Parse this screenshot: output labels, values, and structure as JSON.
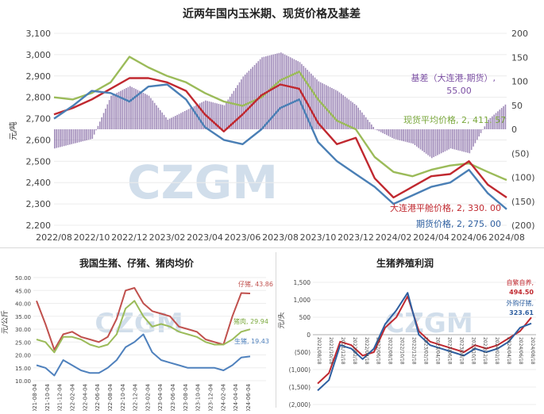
{
  "chart_data": [
    {
      "type": "line",
      "title": "近两年国内玉米期、现货价格及基差",
      "ylabel": "元/吨",
      "watermark": "CZGM",
      "x_ticks": [
        "2022/08",
        "2022/10",
        "2022/12",
        "2023/02",
        "2023/04",
        "2023/06",
        "2023/08",
        "2023/10",
        "2023/12",
        "2024/02",
        "2024/04",
        "2024/06",
        "2024/08"
      ],
      "left_ticks": [
        "3,100",
        "3,000",
        "2,900",
        "2,800",
        "2,700",
        "2,600",
        "2,500",
        "2,400",
        "2,300",
        "2,200"
      ],
      "right_ticks": [
        "200",
        "150",
        "100",
        "50",
        "0",
        "(50)",
        "(100)",
        "(150)",
        "(200)"
      ],
      "ylim": [
        2200,
        3100
      ],
      "ylim_right": [
        -200,
        200
      ],
      "x_domain": [
        "2022/08",
        "2024/08"
      ],
      "series": [
        {
          "name": "现货平均价格",
          "color": "#9bbb59",
          "x": [
            "2022/08",
            "2022/09",
            "2022/10",
            "2022/11",
            "2022/12",
            "2023/01",
            "2023/02",
            "2023/03",
            "2023/04",
            "2023/05",
            "2023/06",
            "2023/07",
            "2023/08",
            "2023/09",
            "2023/10",
            "2023/11",
            "2023/12",
            "2024/01",
            "2024/02",
            "2024/03",
            "2024/04",
            "2024/05",
            "2024/06",
            "2024/07",
            "2024/08"
          ],
          "y": [
            2800,
            2790,
            2820,
            2870,
            2990,
            2940,
            2900,
            2870,
            2820,
            2780,
            2760,
            2800,
            2880,
            2920,
            2790,
            2690,
            2650,
            2520,
            2450,
            2430,
            2460,
            2480,
            2490,
            2450,
            2412
          ]
        },
        {
          "name": "大连港平舱价格",
          "color": "#c0282f",
          "x": [
            "2022/08",
            "2022/09",
            "2022/10",
            "2022/11",
            "2022/12",
            "2023/01",
            "2023/02",
            "2023/03",
            "2023/04",
            "2023/05",
            "2023/06",
            "2023/07",
            "2023/08",
            "2023/09",
            "2023/10",
            "2023/11",
            "2023/12",
            "2024/01",
            "2024/02",
            "2024/03",
            "2024/04",
            "2024/05",
            "2024/06",
            "2024/07",
            "2024/08"
          ],
          "y": [
            2720,
            2750,
            2790,
            2840,
            2890,
            2890,
            2870,
            2830,
            2720,
            2640,
            2720,
            2810,
            2860,
            2840,
            2680,
            2580,
            2610,
            2420,
            2330,
            2380,
            2430,
            2440,
            2500,
            2390,
            2330
          ]
        },
        {
          "name": "期货价格",
          "color": "#4a7fb5",
          "x": [
            "2022/08",
            "2022/09",
            "2022/10",
            "2022/11",
            "2022/12",
            "2023/01",
            "2023/02",
            "2023/03",
            "2023/04",
            "2023/05",
            "2023/06",
            "2023/07",
            "2023/08",
            "2023/09",
            "2023/10",
            "2023/11",
            "2023/12",
            "2024/01",
            "2024/02",
            "2024/03",
            "2024/04",
            "2024/05",
            "2024/06",
            "2024/07",
            "2024/08"
          ],
          "y": [
            2700,
            2760,
            2830,
            2820,
            2780,
            2850,
            2860,
            2790,
            2660,
            2600,
            2580,
            2650,
            2750,
            2790,
            2590,
            2500,
            2440,
            2380,
            2300,
            2340,
            2380,
            2400,
            2460,
            2350,
            2275
          ]
        }
      ],
      "basis_series": {
        "name": "基差（大连港-期货）",
        "color": "#8064a2",
        "x": [
          "2022/08",
          "2022/09",
          "2022/10",
          "2022/11",
          "2022/12",
          "2023/01",
          "2023/02",
          "2023/03",
          "2023/04",
          "2023/05",
          "2023/06",
          "2023/07",
          "2023/08",
          "2023/09",
          "2023/10",
          "2023/11",
          "2023/12",
          "2024/01",
          "2024/02",
          "2024/03",
          "2024/04",
          "2024/05",
          "2024/06",
          "2024/07",
          "2024/08"
        ],
        "y": [
          -40,
          -30,
          -20,
          70,
          90,
          70,
          20,
          40,
          60,
          50,
          110,
          150,
          160,
          140,
          100,
          80,
          50,
          0,
          -20,
          -30,
          -60,
          -40,
          -50,
          20,
          55
        ]
      },
      "annotations": [
        {
          "label": "基差（大连港-期货）,",
          "value": "55.00",
          "color": "#7b4fa3"
        },
        {
          "label": "现货平均价格,",
          "value": "2, 411. 57",
          "color": "#7aa83c"
        },
        {
          "label": "大连港平舱价格,",
          "value": "2, 330. 00",
          "color": "#c0282f"
        },
        {
          "label": "期货价格,",
          "value": "2, 275. 00",
          "color": "#2e5fa0"
        }
      ]
    },
    {
      "type": "line",
      "title": "我国生猪、仔猪、猪肉均价",
      "ylabel": "元/公斤",
      "watermark": "CZGM",
      "y_ticks": [
        "50.00",
        "45.00",
        "40.00",
        "35.00",
        "30.00",
        "25.00",
        "20.00",
        "15.00",
        "10.00"
      ],
      "ylim": [
        10,
        50
      ],
      "x_ticks": [
        "2021-08-04",
        "2021-10-04",
        "2021-12-04",
        "2022-02-04",
        "2022-04-04",
        "2022-06-04",
        "2022-08-04",
        "2022-10-04",
        "2022-12-04",
        "2023-02-04",
        "2023-04-04",
        "2023-06-04",
        "2023-08-04",
        "2023-10-04",
        "2023-12-04",
        "2024-02-04",
        "2024-04-04",
        "2024-06-04"
      ],
      "series": [
        {
          "name": "仔猪",
          "color": "#c0504d",
          "y": [
            41,
            32,
            22,
            28,
            29,
            27,
            26,
            25,
            27,
            34,
            45,
            46,
            40,
            37,
            36,
            35,
            31,
            30,
            29,
            26,
            25,
            24,
            35,
            44,
            43.86
          ]
        },
        {
          "name": "猪肉",
          "color": "#9bbb59",
          "y": [
            26,
            25,
            21,
            27,
            27,
            26,
            24,
            23,
            24,
            28,
            38,
            41,
            35,
            31,
            32,
            31,
            29,
            28,
            27,
            25,
            24,
            24,
            26,
            29,
            29.94
          ]
        },
        {
          "name": "生猪",
          "color": "#4f81bd",
          "y": [
            16,
            15,
            12,
            18,
            16,
            14,
            13,
            13,
            15,
            18,
            23,
            25,
            28,
            21,
            18,
            17,
            16,
            15,
            15,
            15,
            15,
            14,
            16,
            19,
            19.43
          ]
        }
      ],
      "annotations": [
        {
          "label": "仔猪,",
          "value": "43.86",
          "color": "#c0504d"
        },
        {
          "label": "猪肉,",
          "value": "29.94",
          "color": "#7aa83c"
        },
        {
          "label": "生猪,",
          "value": "19.43",
          "color": "#4f81bd"
        }
      ]
    },
    {
      "type": "line",
      "title": "生猪养殖利润",
      "ylabel": "元/头",
      "watermark": "CZGM",
      "y_ticks": [
        "1,500",
        "1,000",
        "500",
        "0",
        "(500)",
        "(1,000)",
        "(1,500)",
        "(2,000)"
      ],
      "ylim": [
        -2000,
        1500
      ],
      "x_ticks": [
        "2021/08/18",
        "2021/10/18",
        "2021/12/18",
        "2022/02/18",
        "2022/04/18",
        "2022/06/18",
        "2022/08/18",
        "2022/10/18",
        "2022/12/18",
        "2023/02/18",
        "2023/04/18",
        "2023/06/18",
        "2023/08/18",
        "2023/10/18",
        "2023/12/18",
        "2024/02/18",
        "2024/04/18",
        "2024/06/18",
        "2024/08/18"
      ],
      "series": [
        {
          "name": "自繁自养",
          "color": "#c0282f",
          "y": [
            -1400,
            -1100,
            -200,
            -300,
            -600,
            -500,
            200,
            500,
            1100,
            100,
            -200,
            -300,
            -400,
            -500,
            -300,
            -400,
            -300,
            -100,
            100,
            494.5
          ]
        },
        {
          "name": "外购仔猪",
          "color": "#2e5fa0",
          "y": [
            -1600,
            -1300,
            -300,
            -400,
            -700,
            -400,
            300,
            700,
            1200,
            0,
            -300,
            -400,
            -500,
            -600,
            -400,
            -500,
            -400,
            -200,
            200,
            323.61
          ]
        }
      ],
      "annotations": [
        {
          "label": "自繁自养,",
          "value": "494.50",
          "color": "#c0282f"
        },
        {
          "label": "外购仔猪,",
          "value": "323.61",
          "color": "#2e5fa0"
        }
      ]
    }
  ]
}
